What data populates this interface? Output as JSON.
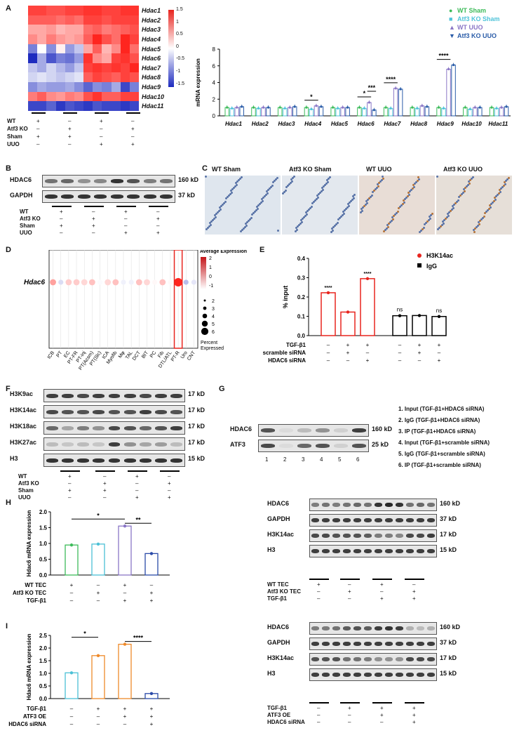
{
  "panel_labels": {
    "A": "A",
    "B": "B",
    "C": "C",
    "D": "D",
    "E": "E",
    "F": "F",
    "G": "G",
    "H": "H",
    "I": "I"
  },
  "panelA": {
    "genes": [
      "Hdac1",
      "Hdac2",
      "Hdac3",
      "Hdac4",
      "Hdac5",
      "Hdac6",
      "Hdac7",
      "Hdac8",
      "Hdac9",
      "Hdac10",
      "Hdac11"
    ],
    "colorbar_ticks": [
      "1.5",
      "1",
      "0.5",
      "0",
      "-0.5",
      "-1",
      "-1.5"
    ],
    "heat_values": [
      [
        1.3,
        1.3,
        1.2,
        1.2,
        1.3,
        1.3,
        1.4,
        1.4,
        1.3,
        1.3,
        1.4,
        1.4
      ],
      [
        1.1,
        1.1,
        1.1,
        1.0,
        1.1,
        1.0,
        1.3,
        1.3,
        1.2,
        1.3,
        1.3,
        1.3
      ],
      [
        0.6,
        0.6,
        0.7,
        0.5,
        0.6,
        0.6,
        1.0,
        1.1,
        0.9,
        1.0,
        1.1,
        1.2
      ],
      [
        0.8,
        0.6,
        0.9,
        0.7,
        0.6,
        0.7,
        1.1,
        1.5,
        1.2,
        1.0,
        1.5,
        1.3
      ],
      [
        -0.9,
        0.0,
        -0.8,
        0.1,
        -0.7,
        -0.4,
        0.6,
        1.1,
        0.5,
        0.8,
        1.5,
        1.0
      ],
      [
        -1.5,
        -0.6,
        -1.2,
        -0.9,
        -1.0,
        -0.7,
        1.4,
        0.8,
        0.6,
        1.3,
        1.4,
        1.2
      ],
      [
        -0.4,
        -0.6,
        -0.3,
        -0.5,
        -0.7,
        -0.4,
        1.3,
        1.4,
        1.3,
        1.4,
        1.3,
        1.5
      ],
      [
        -0.3,
        -0.2,
        -0.3,
        -0.4,
        -0.3,
        -0.2,
        1.1,
        1.3,
        1.2,
        1.1,
        1.3,
        1.2
      ],
      [
        -0.8,
        -0.6,
        -0.7,
        -0.7,
        -0.6,
        -0.8,
        -1.1,
        -0.8,
        -0.9,
        -0.6,
        -1.3,
        -0.9
      ],
      [
        0.9,
        1.1,
        0.8,
        0.7,
        0.9,
        0.8,
        1.2,
        1.4,
        1.1,
        1.1,
        1.3,
        1.3
      ],
      [
        -1.3,
        -1.3,
        -1.1,
        -1.4,
        -1.2,
        -1.3,
        -1.4,
        -1.2,
        -1.3,
        -1.3,
        -1.4,
        -1.3
      ]
    ],
    "row_labels": [
      "WT",
      "Atf3 KO",
      "Sham",
      "UUO"
    ],
    "signs": [
      [
        "+",
        "–",
        "+",
        "–"
      ],
      [
        "–",
        "+",
        "–",
        "+"
      ],
      [
        "+",
        "+",
        "–",
        "–"
      ],
      [
        "–",
        "–",
        "+",
        "+"
      ]
    ]
  },
  "chart_data": [
    {
      "type": "bar",
      "panel": "A",
      "ylabel": "mRNA expression",
      "ylim": [
        0,
        8
      ],
      "yticks": [
        "0",
        "2",
        "4",
        "6",
        "8"
      ],
      "categories": [
        "Hdac1",
        "Hdac2",
        "Hdac3",
        "Hdac4",
        "Hdac5",
        "Hdac6",
        "Hdac7",
        "Hdac8",
        "Hdac9",
        "Hdac10",
        "Hdac11"
      ],
      "series": [
        {
          "name": "WT Sham",
          "values": [
            1.0,
            1.0,
            1.0,
            1.0,
            1.0,
            1.0,
            1.0,
            1.0,
            1.0,
            1.0,
            1.0
          ]
        },
        {
          "name": "Atf3 KO Sham",
          "values": [
            0.9,
            0.9,
            0.9,
            0.8,
            0.9,
            0.9,
            0.9,
            0.9,
            0.9,
            0.8,
            0.9
          ]
        },
        {
          "name": "WT UUO",
          "values": [
            1.0,
            1.0,
            1.0,
            1.2,
            1.0,
            1.6,
            3.3,
            1.2,
            5.6,
            1.0,
            1.0
          ]
        },
        {
          "name": "Atf3 KO UUO",
          "values": [
            1.1,
            1.0,
            1.1,
            1.1,
            1.0,
            0.7,
            3.2,
            1.1,
            6.1,
            1.0,
            1.1
          ]
        }
      ],
      "significance": [
        {
          "gene": "Hdac4",
          "label": "*"
        },
        {
          "gene": "Hdac6",
          "label": "*"
        },
        {
          "gene": "Hdac6",
          "label": "***"
        },
        {
          "gene": "Hdac7",
          "label": "****"
        },
        {
          "gene": "Hdac9",
          "label": "****"
        }
      ]
    },
    {
      "type": "bar",
      "panel": "E",
      "ylabel": "% input",
      "ylim": [
        0,
        0.4
      ],
      "yticks": [
        "0.0",
        "0.1",
        "0.2",
        "0.3",
        "0.4"
      ],
      "series": [
        {
          "name": "H3K14ac",
          "values": [
            0.222,
            0.122,
            0.295
          ]
        },
        {
          "name": "IgG",
          "values": [
            0.103,
            0.104,
            0.099
          ]
        }
      ],
      "significance": [
        "****",
        "****",
        "ns",
        "ns"
      ],
      "row_labels": [
        "TGF-β1",
        "scramble siRNA",
        "HDAC6 siRNA"
      ],
      "signs": [
        [
          "–",
          "+",
          "+",
          "–",
          "+",
          "+"
        ],
        [
          "–",
          "+",
          "–",
          "–",
          "+",
          "–"
        ],
        [
          "–",
          "–",
          "+",
          "–",
          "–",
          "+"
        ]
      ]
    },
    {
      "type": "bar",
      "panel": "H",
      "ylabel": "Hdac6 mRNA expression",
      "ylim": [
        0,
        2.0
      ],
      "yticks": [
        "0.0",
        "0.5",
        "1.0",
        "1.5",
        "2.0"
      ],
      "values": [
        0.95,
        0.98,
        1.55,
        0.68
      ],
      "significance": [
        "*",
        "**"
      ],
      "row_labels": [
        "WT TEC",
        "Atf3 KO TEC",
        "TGF-β1"
      ],
      "signs": [
        [
          "+",
          "–",
          "+",
          "–"
        ],
        [
          "–",
          "+",
          "–",
          "+"
        ],
        [
          "–",
          "–",
          "+",
          "+"
        ]
      ]
    },
    {
      "type": "bar",
      "panel": "I",
      "ylabel": "Hdac6 mRNA expression",
      "ylim": [
        0,
        2.5
      ],
      "yticks": [
        "0.0",
        "0.5",
        "1.0",
        "1.5",
        "2.0",
        "2.5"
      ],
      "values": [
        1.02,
        1.7,
        2.15,
        0.2
      ],
      "significance": [
        "*",
        "****"
      ],
      "row_labels": [
        "TGF-β1",
        "ATF3 OE",
        "HDAC6 siRNA"
      ],
      "signs": [
        [
          "–",
          "+",
          "+",
          "+"
        ],
        [
          "–",
          "–",
          "+",
          "+"
        ],
        [
          "–",
          "–",
          "–",
          "+"
        ]
      ]
    },
    {
      "type": "scatter",
      "panel": "D",
      "gene": "Hdac6",
      "clusters": [
        "ICB",
        "PT",
        "EC",
        "PT-FR",
        "PT-inj",
        "PT(Acsm)",
        "PT(Slc)",
        "ICA",
        "Myofib",
        "Mφ",
        "TAL",
        "DCT",
        "BIT",
        "PC",
        "Fib",
        "DTL/ATL",
        "PT-R",
        "Uro",
        "CNT"
      ],
      "avg_expression": [
        0.6,
        -0.6,
        0.2,
        0.2,
        0.1,
        0.3,
        -0.3,
        0.1,
        0.3,
        -0.4,
        -0.4,
        0.3,
        0.1,
        -0.2,
        0.3,
        -0.2,
        2.0,
        -0.9,
        -0.5
      ],
      "pct_expressed": [
        3,
        2,
        3,
        3,
        3,
        3,
        2,
        3,
        3,
        2,
        2,
        3,
        3,
        2,
        3,
        2,
        5,
        2,
        2
      ],
      "legend_title": "Average Expression",
      "legend_ticks": [
        "2",
        "1",
        "0",
        "-1"
      ],
      "size_legend": [
        "2",
        "3",
        "4",
        "5",
        "6"
      ],
      "size_title": "Percent Expressed"
    }
  ],
  "panelA_legend": [
    "WT Sham",
    "Atf3 KO Sham",
    "WT UUO",
    "Atf3 KO UUO"
  ],
  "panelB": {
    "bands": [
      "HDAC6",
      "GAPDH"
    ],
    "kd": [
      "160 kD",
      "37 kD"
    ],
    "row_labels": [
      "WT",
      "Atf3 KO",
      "Sham",
      "UUO"
    ],
    "signs": [
      [
        "+",
        "–",
        "+",
        "–"
      ],
      [
        "–",
        "+",
        "–",
        "+"
      ],
      [
        "+",
        "+",
        "–",
        "–"
      ],
      [
        "–",
        "–",
        "+",
        "+"
      ]
    ]
  },
  "panelC": {
    "titles": [
      "WT Sham",
      "Atf3 KO  Sham",
      "WT UUO",
      "Atf3 KO UUO"
    ]
  },
  "panelF": {
    "bands": [
      "H3K9ac",
      "H3K14ac",
      "H3K18ac",
      "H3K27ac",
      "H3"
    ],
    "kd": [
      "17 kD",
      "17 kD",
      "17 kD",
      "17 kD",
      "15 kD"
    ],
    "row_labels": [
      "WT",
      "Atf3 KO",
      "Sham",
      "UUO"
    ],
    "signs": [
      [
        "+",
        "–",
        "+",
        "–"
      ],
      [
        "–",
        "+",
        "–",
        "+"
      ],
      [
        "+",
        "+",
        "–",
        "–"
      ],
      [
        "–",
        "–",
        "+",
        "+"
      ]
    ]
  },
  "panelG": {
    "bands": [
      "HDAC6",
      "ATF3"
    ],
    "kd": [
      "160 kD",
      "25 kD"
    ],
    "lanes": [
      "1",
      "2",
      "3",
      "4",
      "5",
      "6"
    ],
    "legend": [
      "1. Input (TGF-β1+HDAC6 siRNA)",
      "2. IgG (TGF-β1+HDAC6 siRNA)",
      "3. IP (TGF-β1+HDAC6 siRNA)",
      "4. Input (TGF-β1+scramble siRNA)",
      "5. IgG (TGF-β1+scramble siRNA)",
      "6. IP (TGF-β1+scramble siRNA)"
    ]
  },
  "panelHblot": {
    "bands": [
      "HDAC6",
      "GAPDH",
      "H3K14ac",
      "H3"
    ],
    "kd": [
      "160 kD",
      "37 kD",
      "17 kD",
      "15 kD"
    ],
    "row_labels": [
      "WT TEC",
      "Atf3 KO TEC",
      "TGF-β1"
    ],
    "signs": [
      [
        "+",
        "–",
        "+",
        "–"
      ],
      [
        "–",
        "+",
        "–",
        "+"
      ],
      [
        "–",
        "–",
        "+",
        "+"
      ]
    ]
  },
  "panelIblot": {
    "bands": [
      "HDAC6",
      "GAPDH",
      "H3K14ac",
      "H3"
    ],
    "kd": [
      "160 kD",
      "37 kD",
      "17 kD",
      "15 kD"
    ],
    "row_labels": [
      "TGF-β1",
      "ATF3 OE",
      "HDAC6 siRNA"
    ],
    "signs": [
      [
        "–",
        "+",
        "+",
        "+"
      ],
      [
        "–",
        "–",
        "+",
        "+"
      ],
      [
        "–",
        "–",
        "–",
        "+"
      ]
    ]
  },
  "colors": {
    "wt_sham": "#3dbb5a",
    "atf3_sham": "#4fc3d9",
    "wt_uuo": "#8a76c6",
    "atf3_uuo": "#2a5ca8",
    "red": "#e8251f",
    "blue": "#1e2bbf",
    "orange": "#ef8a2a",
    "cyan": "#4cc0d6",
    "navy": "#2a4aa8"
  }
}
